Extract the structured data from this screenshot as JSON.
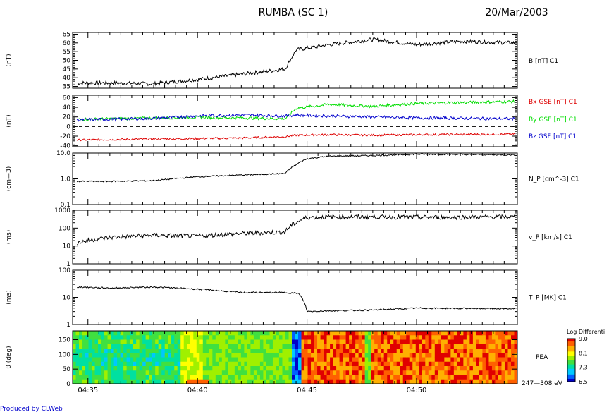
{
  "header": {
    "title": "RUMBA (SC 1)",
    "date": "20/Mar/2003"
  },
  "footer": {
    "credit": "Produced by CLWeb"
  },
  "time_axis": {
    "ticks": [
      "04:35",
      "04:40",
      "04:45",
      "04:50"
    ]
  },
  "colors": {
    "black": "#000000",
    "red": "#dd0000",
    "green": "#00dd00",
    "blue": "#0000cc"
  },
  "chart_data": [
    {
      "type": "line",
      "ylabel": "(nT)",
      "series": [
        {
          "name": "B [nT] C1",
          "x": [
            "04:34.5",
            "04:36",
            "04:38",
            "04:40",
            "04:42",
            "04:44",
            "04:44.5",
            "04:45",
            "04:46",
            "04:48",
            "04:50",
            "04:52",
            "04:54.5"
          ],
          "values": [
            37,
            37,
            36.5,
            39,
            42,
            45,
            56,
            57,
            59,
            62,
            59,
            61,
            60
          ]
        }
      ],
      "ylim": [
        34,
        66
      ],
      "yticks": [
        35,
        40,
        45,
        50,
        55,
        60,
        65
      ]
    },
    {
      "type": "line",
      "ylabel": "(nT)",
      "series": [
        {
          "name": "Bx GSE [nT] C1",
          "color": "red",
          "values": [
            -28,
            -27,
            -26,
            -25,
            -24,
            -21,
            -18,
            -17,
            -18,
            -17,
            -16
          ]
        },
        {
          "name": "By GSE [nT] C1",
          "color": "green",
          "values": [
            15,
            16,
            18,
            19,
            18,
            16,
            38,
            46,
            42,
            48,
            52
          ]
        },
        {
          "name": "Bz GSE [nT] C1",
          "color": "blue",
          "values": [
            14,
            15,
            17,
            22,
            24,
            22,
            24,
            22,
            20,
            18,
            16
          ]
        }
      ],
      "x": [
        "04:34.5",
        "04:36",
        "04:38",
        "04:40",
        "04:42",
        "04:44",
        "04:44.5",
        "04:46",
        "04:48",
        "04:50",
        "04:54.5"
      ],
      "ylim": [
        -42,
        65
      ],
      "yticks": [
        -40,
        -20,
        0,
        20,
        40,
        60
      ]
    },
    {
      "type": "line",
      "ylabel": "(cm—3)",
      "series": [
        {
          "name": "N_P [cm^-3] C1",
          "values": [
            0.8,
            0.8,
            0.85,
            1.2,
            1.4,
            1.6,
            3.5,
            6,
            7.5,
            8,
            9,
            8.5
          ]
        }
      ],
      "x": [
        "04:34.5",
        "04:36",
        "04:38",
        "04:40",
        "04:42",
        "04:44",
        "04:44.5",
        "04:45",
        "04:46",
        "04:48",
        "04:50",
        "04:54.5"
      ],
      "ylim": [
        0.1,
        10.0
      ],
      "log": true,
      "yticks": [
        "10.0",
        "1.0",
        "0.1"
      ]
    },
    {
      "type": "line",
      "ylabel": "(ms)",
      "series": [
        {
          "name": "v_P [km/s] C1",
          "values": [
            15,
            30,
            40,
            35,
            50,
            60,
            200,
            400,
            420,
            430,
            400,
            420
          ]
        }
      ],
      "x": [
        "04:34.5",
        "04:36",
        "04:38",
        "04:40",
        "04:42",
        "04:44",
        "04:44.5",
        "04:45",
        "04:46",
        "04:48",
        "04:50",
        "04:54.5"
      ],
      "ylim": [
        1,
        1000
      ],
      "log": true,
      "yticks": [
        "1000",
        "100",
        "10",
        "1"
      ]
    },
    {
      "type": "line",
      "ylabel": "(ms)",
      "series": [
        {
          "name": "T_P [MK] C1",
          "values": [
            24,
            22,
            24,
            20,
            15,
            15,
            14,
            3,
            3.2,
            3.4,
            4,
            3.8
          ]
        }
      ],
      "x": [
        "04:34.5",
        "04:36",
        "04:38",
        "04:40",
        "04:42",
        "04:44",
        "04:44.6",
        "04:45",
        "04:46",
        "04:48",
        "04:50",
        "04:54.5"
      ],
      "ylim": [
        1,
        100
      ],
      "log": true,
      "yticks": [
        "100",
        "10",
        "1"
      ]
    },
    {
      "type": "heatmap",
      "ylabel": "θ (deg)",
      "series": [
        {
          "name": "PEA"
        }
      ],
      "energy": "247—308 eV",
      "ylim": [
        0,
        180
      ],
      "yticks": [
        "150",
        "100",
        "50",
        "0"
      ],
      "colorbar": {
        "label": "Log Differenti",
        "ticks": [
          "9.0",
          "8.1",
          "7.3",
          "6.5"
        ],
        "range": [
          6.5,
          9.0
        ]
      }
    }
  ]
}
